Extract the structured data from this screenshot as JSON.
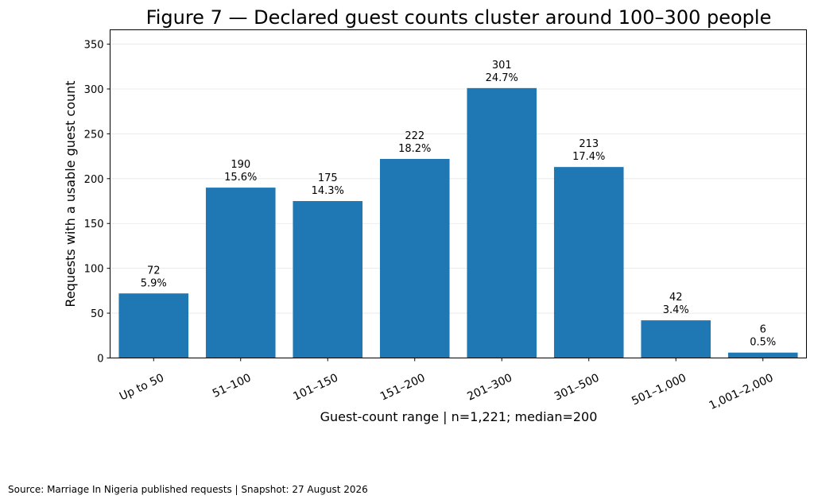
{
  "chart_data": {
    "type": "bar",
    "title": "Figure 7 — Declared guest counts cluster around 100–300 people",
    "xlabel": "Guest-count range | n=1,221; median=200",
    "ylabel": "Requests with a usable guest count",
    "categories": [
      "Up to 50",
      "51–100",
      "101–150",
      "151–200",
      "201–300",
      "301–500",
      "501–1,000",
      "1,001–2,000"
    ],
    "values": [
      72,
      190,
      175,
      222,
      301,
      213,
      42,
      6
    ],
    "value_labels": [
      "72",
      "190",
      "175",
      "222",
      "301",
      "213",
      "42",
      "6"
    ],
    "percent_labels": [
      "5.9%",
      "15.6%",
      "14.3%",
      "18.2%",
      "24.7%",
      "17.4%",
      "3.4%",
      "0.5%"
    ],
    "ylim": [
      0,
      366
    ],
    "yticks": [
      0,
      50,
      100,
      150,
      200,
      250,
      300,
      350
    ],
    "grid": "y",
    "bar_color": "#1f77b4"
  },
  "footer": {
    "source": "Source: Marriage In Nigeria published requests | Snapshot: 27 August 2026"
  }
}
